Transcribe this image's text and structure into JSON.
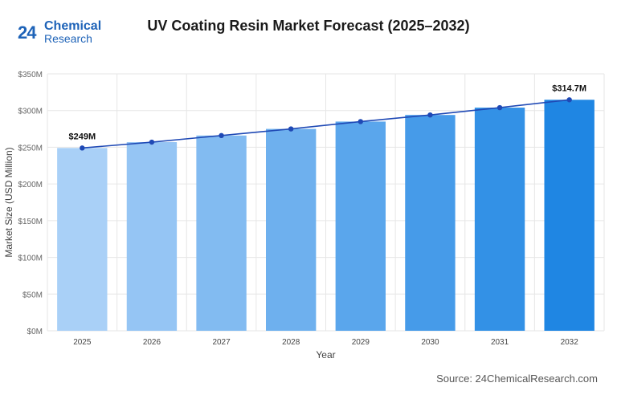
{
  "logo": {
    "number": "24",
    "line1": "Chemical",
    "line2": "Research"
  },
  "title": "UV Coating Resin Market Forecast (2025–2032)",
  "source": "Source: 24ChemicalResearch.com",
  "chart_data": {
    "type": "bar",
    "title": "UV Coating Resin Market Forecast (2025–2032)",
    "xlabel": "Year",
    "ylabel": "Market Size (USD Million)",
    "categories": [
      "2025",
      "2026",
      "2027",
      "2028",
      "2029",
      "2030",
      "2031",
      "2032"
    ],
    "values": [
      249,
      257,
      266,
      275,
      285,
      294,
      304,
      314.7
    ],
    "line_overlay": true,
    "ylim": [
      0,
      350
    ],
    "yticks": [
      0,
      50,
      100,
      150,
      200,
      250,
      300,
      350
    ],
    "ytick_labels": [
      "$0M",
      "$50M",
      "$100M",
      "$150M",
      "$200M",
      "$250M",
      "$300M",
      "$350M"
    ],
    "data_labels": [
      {
        "category": "2025",
        "text": "$249M"
      },
      {
        "category": "2032",
        "text": "$314.7M"
      }
    ],
    "grid": true,
    "legend": "none",
    "colors": {
      "bar_start": "#a9d0f7",
      "bar_end": "#1f86e3",
      "line": "#1f49b5",
      "grid": "#e6e6e6"
    }
  }
}
